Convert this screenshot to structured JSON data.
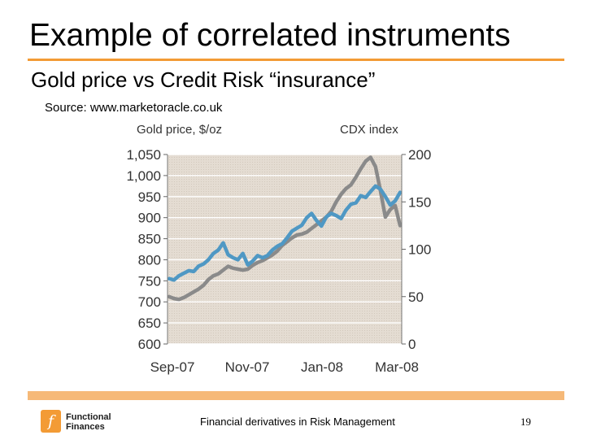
{
  "slide": {
    "title": "Example of correlated instruments",
    "subtitle": "Gold price vs  Credit Risk “insurance”",
    "source": "Source: www.marketoracle.co.uk",
    "footer_text": "Financial derivatives in Risk Management",
    "page_number": "19",
    "logo_line1": "Functional",
    "logo_line2": "Finances",
    "logo_glyph": "f",
    "accent_color": "#f39b35"
  },
  "chart_data": {
    "type": "line",
    "left_axis_title": "Gold price, $/oz",
    "right_axis_title": "CDX index",
    "left_ylim": [
      600,
      1050
    ],
    "left_ticks": [
      "1,050",
      "1,000",
      "950",
      "900",
      "850",
      "800",
      "750",
      "700",
      "650",
      "600"
    ],
    "right_ylim": [
      0,
      200
    ],
    "right_ticks": [
      "200",
      "150",
      "100",
      "50",
      "0"
    ],
    "x_ticks": [
      "Sep-07",
      "Nov-07",
      "Jan-08",
      "Mar-08"
    ],
    "grid": true,
    "series": [
      {
        "name": "Gold price",
        "axis": "left",
        "color": "#4f98c4",
        "values": [
          755,
          752,
          762,
          768,
          774,
          772,
          785,
          790,
          800,
          815,
          823,
          840,
          812,
          805,
          800,
          815,
          788,
          797,
          810,
          805,
          810,
          823,
          832,
          838,
          852,
          868,
          875,
          882,
          900,
          910,
          893,
          880,
          902,
          910,
          905,
          898,
          918,
          932,
          935,
          952,
          948,
          962,
          975,
          968,
          950,
          930,
          940,
          960
        ]
      },
      {
        "name": "CDX index",
        "axis": "right",
        "color": "#8a8a8a",
        "values": [
          50,
          48,
          47,
          49,
          52,
          55,
          58,
          62,
          68,
          72,
          74,
          78,
          82,
          80,
          79,
          78,
          79,
          83,
          86,
          88,
          91,
          94,
          98,
          104,
          108,
          112,
          115,
          116,
          118,
          122,
          126,
          130,
          134,
          140,
          150,
          158,
          164,
          168,
          176,
          185,
          193,
          197,
          187,
          162,
          134,
          142,
          146,
          125
        ]
      }
    ]
  }
}
